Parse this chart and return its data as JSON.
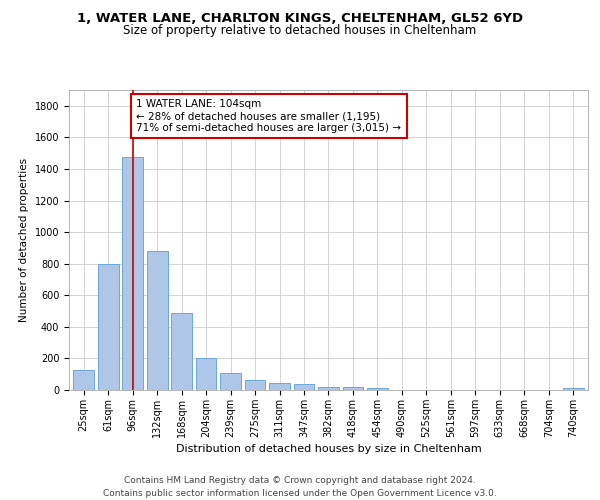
{
  "title1": "1, WATER LANE, CHARLTON KINGS, CHELTENHAM, GL52 6YD",
  "title2": "Size of property relative to detached houses in Cheltenham",
  "xlabel": "Distribution of detached houses by size in Cheltenham",
  "ylabel": "Number of detached properties",
  "categories": [
    "25sqm",
    "61sqm",
    "96sqm",
    "132sqm",
    "168sqm",
    "204sqm",
    "239sqm",
    "275sqm",
    "311sqm",
    "347sqm",
    "382sqm",
    "418sqm",
    "454sqm",
    "490sqm",
    "525sqm",
    "561sqm",
    "597sqm",
    "633sqm",
    "668sqm",
    "704sqm",
    "740sqm"
  ],
  "values": [
    125,
    800,
    1475,
    880,
    490,
    205,
    105,
    65,
    42,
    35,
    22,
    20,
    12,
    1,
    1,
    1,
    1,
    1,
    1,
    1,
    12
  ],
  "bar_color": "#aec6e8",
  "bar_edge_color": "#5a9fd4",
  "background_color": "#ffffff",
  "grid_color": "#cccccc",
  "annotation_text": "1 WATER LANE: 104sqm\n← 28% of detached houses are smaller (1,195)\n71% of semi-detached houses are larger (3,015) →",
  "annotation_box_color": "#ffffff",
  "annotation_box_edge_color": "#cc0000",
  "vline_x_index": 2,
  "vline_color": "#cc0000",
  "ylim": [
    0,
    1900
  ],
  "yticks": [
    0,
    200,
    400,
    600,
    800,
    1000,
    1200,
    1400,
    1600,
    1800
  ],
  "footer": "Contains HM Land Registry data © Crown copyright and database right 2024.\nContains public sector information licensed under the Open Government Licence v3.0.",
  "title_fontsize": 9.5,
  "subtitle_fontsize": 8.5,
  "xlabel_fontsize": 8,
  "ylabel_fontsize": 7.5,
  "tick_fontsize": 7,
  "annotation_fontsize": 7.5,
  "footer_fontsize": 6.5
}
